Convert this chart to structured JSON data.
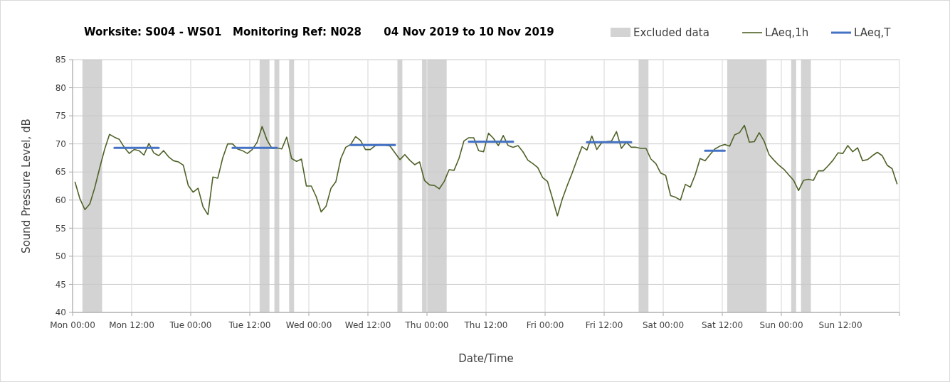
{
  "chart_data": {
    "type": "line",
    "title": "Worksite: S004 - WS01   Monitoring Ref: N028      04 Nov 2019 to 10 Nov 2019",
    "xlabel": "Date/Time",
    "ylabel": "Sound Pressure Level, dB",
    "xlim": [
      "2019-11-04T00:00",
      "2019-11-11T00:00"
    ],
    "ylim": [
      40,
      85
    ],
    "yticks": [
      40,
      45,
      50,
      55,
      60,
      65,
      70,
      75,
      80,
      85
    ],
    "xticks": [
      {
        "value": "2019-11-04T00:00",
        "label": "Mon 00:00"
      },
      {
        "value": "2019-11-04T12:00",
        "label": "Mon 12:00"
      },
      {
        "value": "2019-11-05T00:00",
        "label": "Tue 00:00"
      },
      {
        "value": "2019-11-05T12:00",
        "label": "Tue 12:00"
      },
      {
        "value": "2019-11-06T00:00",
        "label": "Wed 00:00"
      },
      {
        "value": "2019-11-06T12:00",
        "label": "Wed 12:00"
      },
      {
        "value": "2019-11-07T00:00",
        "label": "Thu 00:00"
      },
      {
        "value": "2019-11-07T12:00",
        "label": "Thu 12:00"
      },
      {
        "value": "2019-11-08T00:00",
        "label": "Fri 00:00"
      },
      {
        "value": "2019-11-08T12:00",
        "label": "Fri 12:00"
      },
      {
        "value": "2019-11-09T00:00",
        "label": "Sat 00:00"
      },
      {
        "value": "2019-11-09T12:00",
        "label": "Sat 12:00"
      },
      {
        "value": "2019-11-10T00:00",
        "label": "Sun 00:00"
      },
      {
        "value": "2019-11-10T12:00",
        "label": "Sun 12:00"
      },
      {
        "value": "2019-11-11T00:00",
        "label": null
      }
    ],
    "grid": true,
    "legend": "top right",
    "marker": "none",
    "line_style": "solid",
    "bands": [
      {
        "axis": "x",
        "from": "2019-11-04T02:00",
        "to": "2019-11-04T06:00",
        "label": "Excluded data",
        "color": "#d3d3d3"
      },
      {
        "axis": "x",
        "from": "2019-11-05T14:00",
        "to": "2019-11-05T16:00",
        "color": "#d3d3d3"
      },
      {
        "axis": "x",
        "from": "2019-11-05T17:00",
        "to": "2019-11-05T18:00",
        "color": "#d3d3d3"
      },
      {
        "axis": "x",
        "from": "2019-11-05T20:00",
        "to": "2019-11-05T21:00",
        "color": "#d3d3d3"
      },
      {
        "axis": "x",
        "from": "2019-11-06T18:00",
        "to": "2019-11-06T19:00",
        "color": "#d3d3d3"
      },
      {
        "axis": "x",
        "from": "2019-11-06T23:00",
        "to": "2019-11-07T04:00",
        "color": "#d3d3d3"
      },
      {
        "axis": "x",
        "from": "2019-11-08T19:00",
        "to": "2019-11-08T21:00",
        "color": "#d3d3d3"
      },
      {
        "axis": "x",
        "from": "2019-11-09T13:00",
        "to": "2019-11-09T21:00",
        "color": "#d3d3d3"
      },
      {
        "axis": "x",
        "from": "2019-11-10T02:00",
        "to": "2019-11-10T03:00",
        "color": "#d3d3d3"
      },
      {
        "axis": "x",
        "from": "2019-11-10T04:00",
        "to": "2019-11-10T06:00",
        "color": "#d3d3d3"
      }
    ],
    "series": [
      {
        "name": "LAeq,1h",
        "color": "#4f6228",
        "x": [
          "2019-11-04T00:30",
          "2019-11-04T01:30",
          "2019-11-04T02:30",
          "2019-11-04T03:30",
          "2019-11-04T04:30",
          "2019-11-04T05:30",
          "2019-11-04T06:30",
          "2019-11-04T07:30",
          "2019-11-04T08:30",
          "2019-11-04T09:30",
          "2019-11-04T10:30",
          "2019-11-04T11:30",
          "2019-11-04T12:30",
          "2019-11-04T13:30",
          "2019-11-04T14:30",
          "2019-11-04T15:30",
          "2019-11-04T16:30",
          "2019-11-04T17:30",
          "2019-11-04T18:30",
          "2019-11-04T19:30",
          "2019-11-04T20:30",
          "2019-11-04T21:30",
          "2019-11-04T22:30",
          "2019-11-04T23:30",
          "2019-11-05T00:30",
          "2019-11-05T01:30",
          "2019-11-05T02:30",
          "2019-11-05T03:30",
          "2019-11-05T04:30",
          "2019-11-05T05:30",
          "2019-11-05T06:30",
          "2019-11-05T07:30",
          "2019-11-05T08:30",
          "2019-11-05T09:30",
          "2019-11-05T10:30",
          "2019-11-05T11:30",
          "2019-11-05T12:30",
          "2019-11-05T13:30",
          "2019-11-05T14:30",
          "2019-11-05T15:30",
          "2019-11-05T16:30",
          "2019-11-05T17:30",
          "2019-11-05T18:30",
          "2019-11-05T19:30",
          "2019-11-05T20:30",
          "2019-11-05T21:30",
          "2019-11-05T22:30",
          "2019-11-05T23:30",
          "2019-11-06T00:30",
          "2019-11-06T01:30",
          "2019-11-06T02:30",
          "2019-11-06T03:30",
          "2019-11-06T04:30",
          "2019-11-06T05:30",
          "2019-11-06T06:30",
          "2019-11-06T07:30",
          "2019-11-06T08:30",
          "2019-11-06T09:30",
          "2019-11-06T10:30",
          "2019-11-06T11:30",
          "2019-11-06T12:30",
          "2019-11-06T13:30",
          "2019-11-06T14:30",
          "2019-11-06T15:30",
          "2019-11-06T16:30",
          "2019-11-06T17:30",
          "2019-11-06T18:30",
          "2019-11-06T19:30",
          "2019-11-06T20:30",
          "2019-11-06T21:30",
          "2019-11-06T22:30",
          "2019-11-06T23:30",
          "2019-11-07T00:30",
          "2019-11-07T01:30",
          "2019-11-07T02:30",
          "2019-11-07T03:30",
          "2019-11-07T04:30",
          "2019-11-07T05:30",
          "2019-11-07T06:30",
          "2019-11-07T07:30",
          "2019-11-07T08:30",
          "2019-11-07T09:30",
          "2019-11-07T10:30",
          "2019-11-07T11:30",
          "2019-11-07T12:30",
          "2019-11-07T13:30",
          "2019-11-07T14:30",
          "2019-11-07T15:30",
          "2019-11-07T16:30",
          "2019-11-07T17:30",
          "2019-11-07T18:30",
          "2019-11-07T19:30",
          "2019-11-07T20:30",
          "2019-11-07T21:30",
          "2019-11-07T22:30",
          "2019-11-07T23:30",
          "2019-11-08T00:30",
          "2019-11-08T01:30",
          "2019-11-08T02:30",
          "2019-11-08T03:30",
          "2019-11-08T04:30",
          "2019-11-08T05:30",
          "2019-11-08T06:30",
          "2019-11-08T07:30",
          "2019-11-08T08:30",
          "2019-11-08T09:30",
          "2019-11-08T10:30",
          "2019-11-08T11:30",
          "2019-11-08T12:30",
          "2019-11-08T13:30",
          "2019-11-08T14:30",
          "2019-11-08T15:30",
          "2019-11-08T16:30",
          "2019-11-08T17:30",
          "2019-11-08T18:30",
          "2019-11-08T19:30",
          "2019-11-08T20:30",
          "2019-11-08T21:30",
          "2019-11-08T22:30",
          "2019-11-08T23:30",
          "2019-11-09T00:30",
          "2019-11-09T01:30",
          "2019-11-09T02:30",
          "2019-11-09T03:30",
          "2019-11-09T04:30",
          "2019-11-09T05:30",
          "2019-11-09T06:30",
          "2019-11-09T07:30",
          "2019-11-09T08:30",
          "2019-11-09T09:30",
          "2019-11-09T10:30",
          "2019-11-09T11:30",
          "2019-11-09T12:30",
          "2019-11-09T13:30",
          "2019-11-09T14:30",
          "2019-11-09T15:30",
          "2019-11-09T16:30",
          "2019-11-09T17:30",
          "2019-11-09T18:30",
          "2019-11-09T19:30",
          "2019-11-09T20:30",
          "2019-11-09T21:30",
          "2019-11-09T22:30",
          "2019-11-09T23:30",
          "2019-11-10T00:30",
          "2019-11-10T01:30",
          "2019-11-10T02:30",
          "2019-11-10T03:30",
          "2019-11-10T04:30",
          "2019-11-10T05:30",
          "2019-11-10T06:30",
          "2019-11-10T07:30",
          "2019-11-10T08:30",
          "2019-11-10T09:30",
          "2019-11-10T10:30",
          "2019-11-10T11:30",
          "2019-11-10T12:30",
          "2019-11-10T13:30",
          "2019-11-10T14:30",
          "2019-11-10T15:30",
          "2019-11-10T16:30",
          "2019-11-10T17:30",
          "2019-11-10T18:30",
          "2019-11-10T19:30",
          "2019-11-10T20:30",
          "2019-11-10T21:30",
          "2019-11-10T22:30",
          "2019-11-10T23:30"
        ],
        "values": [
          63.2,
          60.2,
          58.3,
          59.3,
          62.2,
          65.7,
          69.0,
          71.7,
          71.2,
          70.8,
          69.4,
          68.3,
          69.0,
          68.8,
          68.0,
          70.1,
          68.4,
          67.9,
          68.8,
          67.7,
          67.0,
          66.8,
          66.2,
          62.6,
          61.4,
          62.1,
          58.8,
          57.4,
          64.1,
          63.9,
          67.5,
          70.0,
          70.0,
          69.1,
          68.8,
          68.3,
          69.0,
          70.3,
          73.1,
          70.7,
          69.2,
          69.3,
          69.1,
          71.2,
          67.4,
          66.9,
          67.3,
          62.5,
          62.5,
          60.6,
          57.9,
          58.9,
          62.1,
          63.3,
          67.4,
          69.4,
          69.9,
          71.3,
          70.6,
          69.0,
          69.0,
          69.7,
          69.9,
          69.8,
          69.6,
          68.4,
          67.2,
          68.1,
          67.1,
          66.3,
          66.8,
          63.5,
          62.7,
          62.6,
          62.0,
          63.3,
          65.4,
          65.3,
          67.4,
          70.5,
          71.1,
          71.1,
          68.8,
          68.6,
          71.9,
          71.0,
          69.7,
          71.5,
          69.7,
          69.4,
          69.7,
          68.6,
          67.1,
          66.5,
          65.8,
          64.0,
          63.3,
          60.3,
          57.2,
          60.2,
          62.6,
          64.8,
          67.2,
          69.5,
          68.9,
          71.4,
          69.0,
          70.2,
          70.4,
          70.5,
          72.2,
          69.2,
          70.3,
          69.4,
          69.4,
          69.2,
          69.2,
          67.3,
          66.5,
          64.8,
          64.4,
          60.8,
          60.5,
          60.0,
          62.8,
          62.3,
          64.5,
          67.4,
          67.0,
          68.1,
          69.1,
          69.6,
          69.9,
          69.6,
          71.6,
          72.0,
          73.3,
          70.3,
          70.4,
          72.0,
          70.5,
          68.1,
          67.1,
          66.2,
          65.5,
          64.5,
          63.5,
          61.7,
          63.5,
          63.7,
          63.5,
          65.2,
          65.2,
          66.1,
          67.1,
          68.4,
          68.3,
          69.7,
          68.6,
          69.3,
          67.0,
          67.2,
          67.9,
          68.5,
          67.9,
          66.2,
          65.6,
          62.9
        ]
      },
      {
        "name": "LAeq,T",
        "color": "#4472c4",
        "x": [
          "2019-11-04T08:30",
          "2019-11-04T17:30",
          "2019-11-05T01:00",
          "2019-11-05T08:30",
          "2019-11-05T17:30",
          "2019-11-06T02:00",
          "2019-11-06T08:30",
          "2019-11-06T17:30",
          "2019-11-07T03:00",
          "2019-11-07T08:30",
          "2019-11-07T17:30",
          "2019-11-08T04:00",
          "2019-11-08T08:30",
          "2019-11-08T17:30",
          "2019-11-09T00:00",
          "2019-11-09T08:30",
          "2019-11-09T12:30"
        ],
        "values": [
          69.3,
          69.3,
          null,
          69.3,
          69.3,
          null,
          69.8,
          69.8,
          null,
          70.4,
          70.4,
          null,
          70.3,
          70.3,
          null,
          68.8,
          68.8
        ]
      }
    ]
  }
}
